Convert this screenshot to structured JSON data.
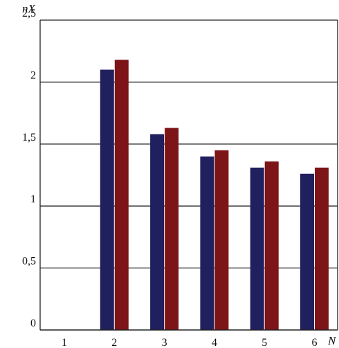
{
  "chart_data": {
    "type": "bar",
    "title": "",
    "ylabel": "nX",
    "xlabel": "N",
    "categories": [
      "1",
      "2",
      "3",
      "4",
      "5",
      "6"
    ],
    "series": [
      {
        "values": [
          null,
          2.1,
          1.58,
          1.4,
          1.31,
          1.26
        ],
        "color": "#20205e"
      },
      {
        "values": [
          null,
          2.18,
          1.63,
          1.45,
          1.36,
          1.31
        ],
        "color": "#7d1418"
      }
    ],
    "ylim": [
      0,
      2.5
    ],
    "yticks": [
      0,
      0.5,
      1,
      1.5,
      2,
      2.5
    ],
    "ytick_labels": [
      "0",
      "0,5",
      "1",
      "1,5",
      "2",
      "2,5"
    ],
    "grid": true
  }
}
